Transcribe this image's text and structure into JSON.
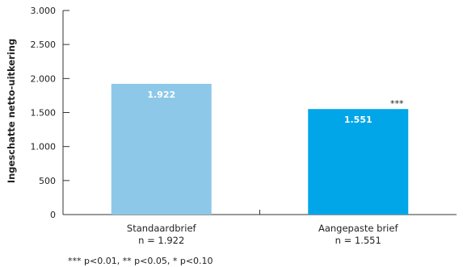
{
  "chart_data": {
    "type": "bar",
    "ylabel": "Ingeschatte netto-uitkering",
    "ylim": [
      0,
      3000
    ],
    "yticks": [
      0,
      500,
      1000,
      1500,
      2000,
      2500,
      3000
    ],
    "ytick_labels": [
      "0",
      "500",
      "1.000",
      "1.500",
      "2.000",
      "2.500",
      "3.000"
    ],
    "categories": [
      "Standaardbrief",
      "Aangepaste brief"
    ],
    "category_sublabels": [
      "n = 1.922",
      "n = 1.551"
    ],
    "values": [
      1922,
      1551
    ],
    "data_labels": [
      "1.922",
      "1.551"
    ],
    "bar_colors": [
      "#8DC8E8",
      "#00A6E8"
    ],
    "significance": [
      "",
      "***"
    ],
    "grid": false,
    "footnote": "*** p<0.01, ** p<0.05, * p<0.10"
  }
}
